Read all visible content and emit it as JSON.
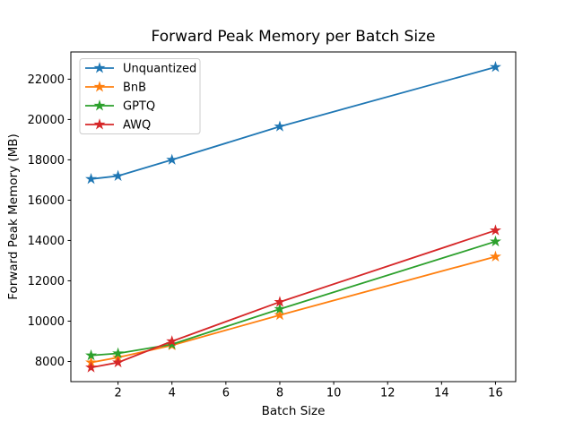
{
  "figure": {
    "background": "#ffffff",
    "axis_color": "#000000",
    "legend_border": "#cccccc"
  },
  "chart_data": {
    "type": "line",
    "title": "Forward Peak Memory per Batch Size",
    "xlabel": "Batch Size",
    "ylabel": "Forward Peak Memory (MB)",
    "x": [
      1,
      2,
      4,
      8,
      16
    ],
    "series": [
      {
        "name": "Unquantized",
        "color": "#1f77b4",
        "values": [
          17050,
          17200,
          18000,
          19650,
          22600
        ]
      },
      {
        "name": "BnB",
        "color": "#ff7f0e",
        "values": [
          7950,
          8200,
          8800,
          10300,
          13200
        ]
      },
      {
        "name": "GPTQ",
        "color": "#2ca02c",
        "values": [
          8300,
          8400,
          8850,
          10600,
          13950
        ]
      },
      {
        "name": "AWQ",
        "color": "#d62728",
        "values": [
          7700,
          7950,
          9000,
          10950,
          14500
        ]
      }
    ],
    "xlim": [
      0.25,
      16.75
    ],
    "ylim": [
      7000,
      23350
    ],
    "xticks": [
      2,
      4,
      6,
      8,
      10,
      12,
      14,
      16
    ],
    "yticks": [
      8000,
      10000,
      12000,
      14000,
      16000,
      18000,
      20000,
      22000
    ],
    "marker": "star",
    "grid": false,
    "legend_position": "upper left"
  }
}
